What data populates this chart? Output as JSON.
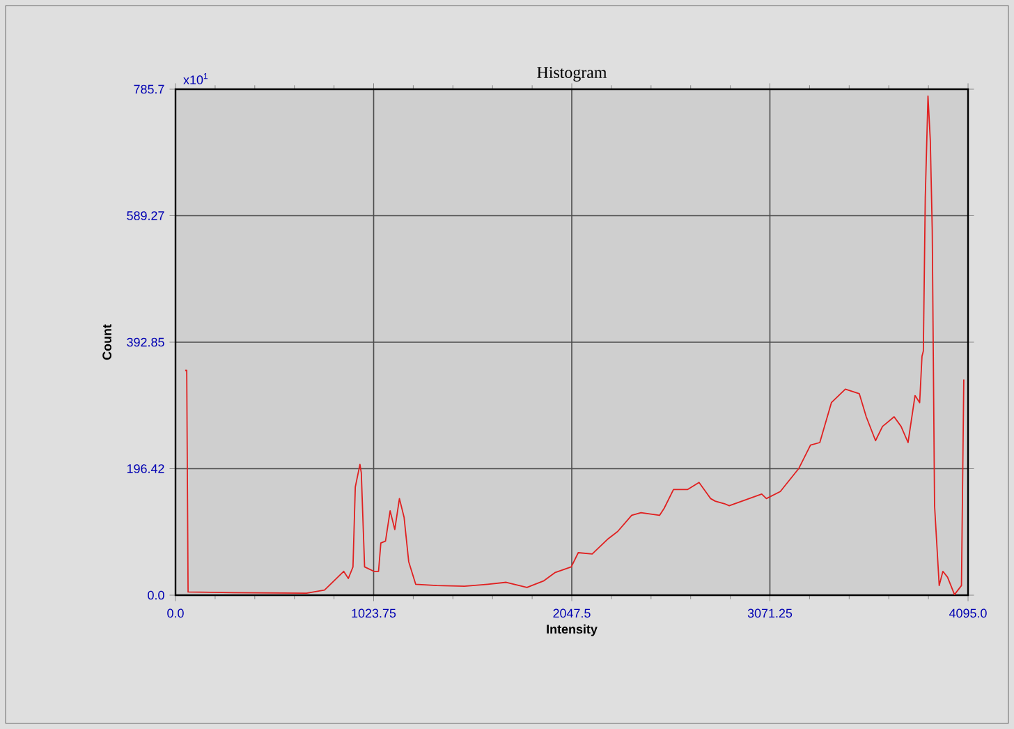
{
  "chart_data": {
    "type": "line",
    "title": "Histogram",
    "xlabel": "Intensity",
    "ylabel": "Count",
    "annotations": [
      "x10$^{1}$"
    ],
    "xlim": [
      0,
      4095
    ],
    "ylim": [
      0,
      785.7
    ],
    "xticks": [
      {
        "value": 0,
        "label": "0.0"
      },
      1023.75,
      2047.5,
      3071.25,
      {
        "value": 4095,
        "label": "4095.0"
      }
    ],
    "yticks": [
      {
        "value": 0,
        "label": "0.0"
      },
      196.42,
      392.85,
      589.27,
      785.7
    ],
    "grid": true,
    "series": [
      {
        "color": "#e02020",
        "x": [
          50,
          58,
          65,
          300,
          677,
          770,
          845,
          869,
          893,
          917,
          929,
          953,
          960,
          977,
          1025,
          1049,
          1061,
          1085,
          1109,
          1133,
          1157,
          1181,
          1205,
          1241,
          1349,
          1493,
          1613,
          1709,
          1816,
          1901,
          1960,
          2045,
          2081,
          2153,
          2237,
          2285,
          2357,
          2405,
          2501,
          2525,
          2573,
          2645,
          2705,
          2765,
          2789,
          2837,
          2861,
          3029,
          3053,
          3125,
          3221,
          3281,
          3329,
          3389,
          3461,
          3533,
          3569,
          3617,
          3653,
          3713,
          3749,
          3785,
          3821,
          3845,
          3857,
          3864,
          3874,
          3888,
          3900,
          3910,
          3922,
          3946,
          3965,
          3989,
          4025,
          4061,
          4073
        ],
        "values": [
          349,
          349,
          5,
          4,
          3,
          8,
          30,
          37,
          26,
          44,
          168,
          203,
          190,
          44,
          37,
          37,
          81,
          84,
          131,
          102,
          150,
          121,
          52,
          17,
          15,
          14,
          17,
          20,
          12,
          22,
          35,
          44,
          66,
          64,
          88,
          99,
          124,
          128,
          124,
          135,
          164,
          164,
          175,
          150,
          146,
          142,
          139,
          157,
          150,
          161,
          197,
          233,
          237,
          299,
          320,
          313,
          277,
          240,
          262,
          277,
          262,
          237,
          310,
          299,
          371,
          379,
          618,
          775,
          706,
          567,
          139,
          15,
          37,
          28,
          1,
          15,
          335
        ]
      }
    ]
  }
}
